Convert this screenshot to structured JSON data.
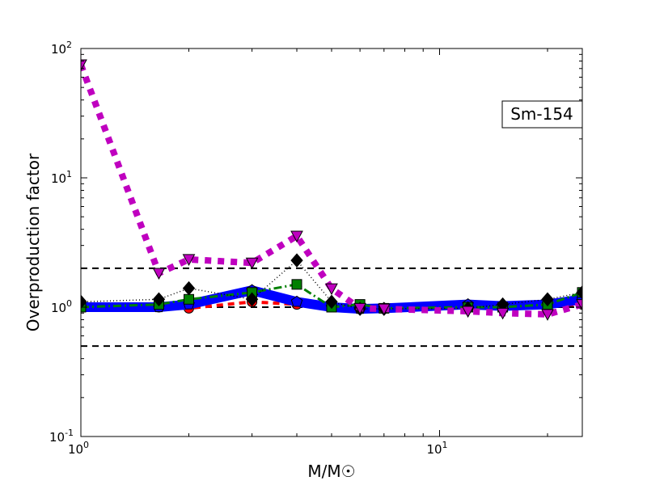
{
  "chart_data": {
    "type": "line",
    "xscale": "log",
    "yscale": "log",
    "xlim": [
      1,
      25
    ],
    "ylim": [
      0.1,
      100
    ],
    "xlabel": "M/M☉",
    "ylabel": "Overproduction factor",
    "annotation": "Sm-154",
    "x_ticks": [
      {
        "value": 1,
        "label": "10",
        "exp": "0"
      },
      {
        "value": 10,
        "label": "10",
        "exp": "1"
      }
    ],
    "y_ticks": [
      {
        "value": 0.1,
        "label": "10",
        "exp": "-1"
      },
      {
        "value": 1,
        "label": "10",
        "exp": "0"
      },
      {
        "value": 10,
        "label": "10",
        "exp": "1"
      },
      {
        "value": 100,
        "label": "10",
        "exp": "2"
      }
    ],
    "reference_lines": [
      2,
      1,
      0.5
    ],
    "x": [
      1,
      1.65,
      2,
      3,
      4,
      5,
      6,
      7,
      12,
      15,
      20,
      25
    ],
    "series": [
      {
        "name": "red",
        "color": "#ff0000",
        "style": "dashed",
        "marker": "circle",
        "values": [
          1.0,
          1.0,
          0.98,
          1.1,
          1.05,
          1.0,
          0.98,
          0.98,
          1.0,
          1.02,
          1.03,
          1.05
        ]
      },
      {
        "name": "blue",
        "color": "#0000ff",
        "style": "solid",
        "marker": "pentagon",
        "values": [
          1.0,
          1.0,
          1.05,
          1.35,
          1.1,
          1.0,
          0.97,
          0.98,
          1.05,
          1.02,
          1.05,
          1.15
        ]
      },
      {
        "name": "green",
        "color": "#008000",
        "style": "dashdot",
        "marker": "square",
        "values": [
          1.0,
          1.05,
          1.15,
          1.3,
          1.5,
          1.0,
          1.05,
          0.98,
          1.0,
          1.0,
          1.05,
          1.3
        ]
      },
      {
        "name": "black",
        "color": "#000000",
        "style": "dotted",
        "marker": "diamond",
        "values": [
          1.1,
          1.15,
          1.4,
          1.15,
          2.3,
          1.1,
          0.97,
          0.97,
          0.98,
          1.05,
          1.15,
          1.3
        ]
      },
      {
        "name": "magenta",
        "color": "#bf00bf",
        "style": "dotted-thick",
        "marker": "triangle-down",
        "values": [
          75,
          1.83,
          2.34,
          2.2,
          3.55,
          1.39,
          0.98,
          0.97,
          0.93,
          0.9,
          0.88,
          1.05
        ]
      }
    ]
  }
}
